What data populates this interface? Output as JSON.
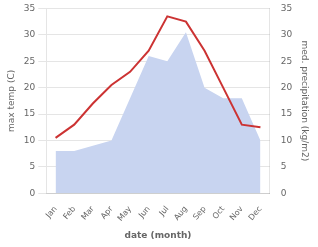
{
  "chart_data": {
    "type": "line",
    "categories": [
      "Jan",
      "Feb",
      "Mar",
      "Apr",
      "May",
      "Jun",
      "Jul",
      "Aug",
      "Sep",
      "Oct",
      "Nov",
      "Dec"
    ],
    "xlabel": "date (month)",
    "ylabel": "max temp (C)",
    "y2label": "med. precipitation (kg/m2)",
    "series": [
      {
        "type": "area",
        "axis": "y2",
        "color": "#c8d4f0",
        "values": [
          8.0,
          8.0,
          9.0,
          10.0,
          18.0,
          26.0,
          25.0,
          30.5,
          20.0,
          18.0,
          18.0,
          10.0
        ]
      },
      {
        "type": "line",
        "color": "#cc3333",
        "values": [
          10.5,
          13.0,
          17.0,
          20.5,
          23.0,
          27.0,
          33.5,
          32.5,
          27.0,
          20.0,
          13.0,
          12.5
        ]
      }
    ],
    "ylim": [
      0,
      35
    ],
    "yticks": [
      0,
      5,
      10,
      15,
      20,
      25,
      30,
      35
    ],
    "y2lim": [
      0,
      35
    ],
    "y2ticks": [
      0,
      5,
      10,
      15,
      20,
      25,
      30,
      35
    ],
    "grid": true
  }
}
